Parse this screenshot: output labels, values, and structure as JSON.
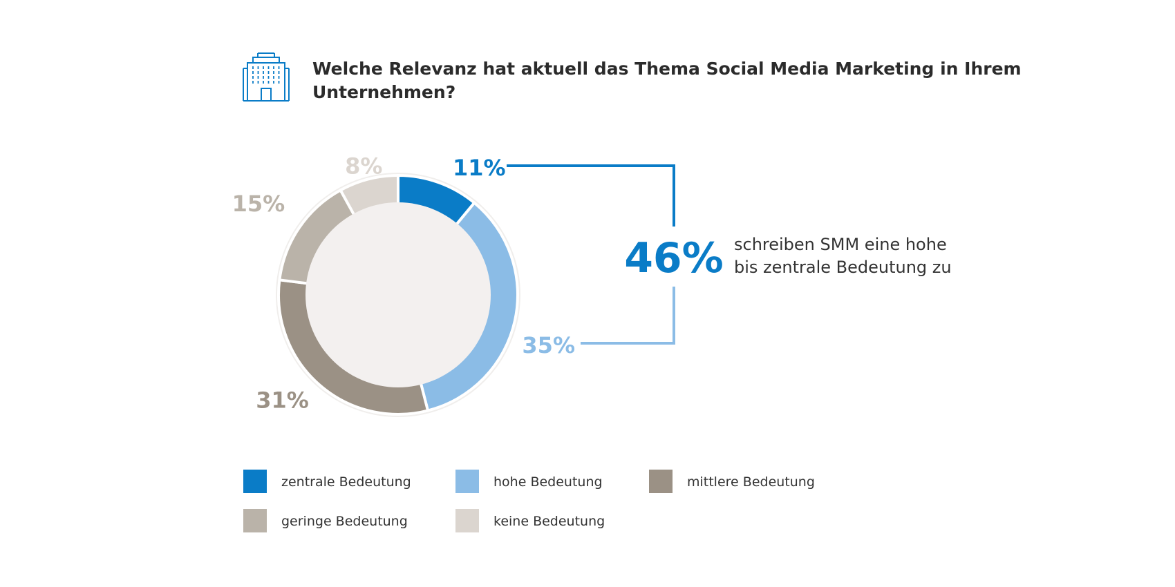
{
  "title_lines": [
    "Welche Relevanz hat aktuell das Thema Social Media Marketing in Ihrem",
    "Unternehmen?"
  ],
  "icon": "office-building-icon",
  "colors": {
    "zentrale": "#0a7cc7",
    "hohe": "#8bbce6",
    "mittlere": "#9b9185",
    "geringe": "#bab3a9",
    "keine": "#dbd5cf",
    "inner_fill": "#f3f0ef",
    "ring_border": "#f0eeec",
    "title": "#2b2b2b"
  },
  "callout": {
    "big_value": "46%",
    "text_lines": [
      "schreiben SMM eine hohe",
      "bis zentrale Bedeutung zu"
    ]
  },
  "chart_data": {
    "type": "pie",
    "title": "Welche Relevanz hat aktuell das Thema Social Media Marketing in Ihrem Unternehmen?",
    "donut": true,
    "legend_placement": "bottom",
    "categories": [
      "zentrale Bedeutung",
      "hohe Bedeutung",
      "mittlere Bedeutung",
      "geringe Bedeutung",
      "keine Bedeutung"
    ],
    "values": [
      11,
      35,
      31,
      15,
      8
    ],
    "labels": [
      "11%",
      "35%",
      "31%",
      "15%",
      "8%"
    ],
    "unit": "%"
  }
}
